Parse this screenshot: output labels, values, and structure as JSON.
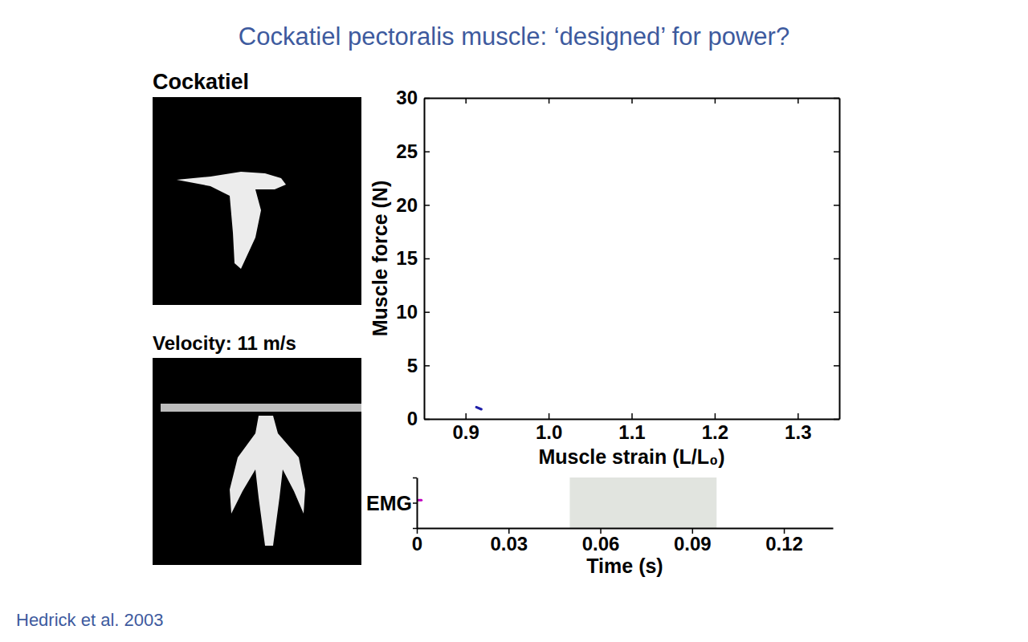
{
  "title": "Cockatiel pectoralis muscle: ‘designed’ for power?",
  "source": "Hedrick et al. 2003",
  "photo_labels": [
    "Cockatiel",
    "Velocity: 11 m/s"
  ],
  "chart_data": [
    {
      "type": "line",
      "x_label": "Muscle strain (L/L₀)",
      "y_label": "Muscle force (N)",
      "xlim": [
        0.85,
        1.35
      ],
      "xticks": [
        0.9,
        {
          "value": 1,
          "label": "1.0"
        },
        1.1,
        1.2,
        1.3
      ],
      "ylim": [
        0,
        30
      ],
      "yticks": [
        0,
        5,
        10,
        15,
        20,
        25,
        30
      ],
      "grid": false,
      "series": [
        {
          "color": "#1f1fa8",
          "x": [
            0.913,
            0.919
          ],
          "values": [
            1.1,
            0.9
          ]
        }
      ]
    },
    {
      "type": "line",
      "x_label": "Time (s)",
      "y_label": "EMG",
      "xlim": [
        0,
        0.136
      ],
      "xticks": [
        0,
        0.03,
        0.06,
        0.09,
        0.12
      ],
      "ylim": [
        -1,
        1
      ],
      "yticks": [
        -1,
        0,
        1
      ],
      "tick_labels": "x",
      "grid": false,
      "bands": [
        {
          "x0": 0.05,
          "x1": 0.098,
          "color": "#e1e4df"
        }
      ],
      "series": [
        {
          "color": "#c000c0",
          "x": [
            0.0005,
            0.0015
          ],
          "values": [
            0.1,
            0.1
          ]
        }
      ]
    }
  ]
}
